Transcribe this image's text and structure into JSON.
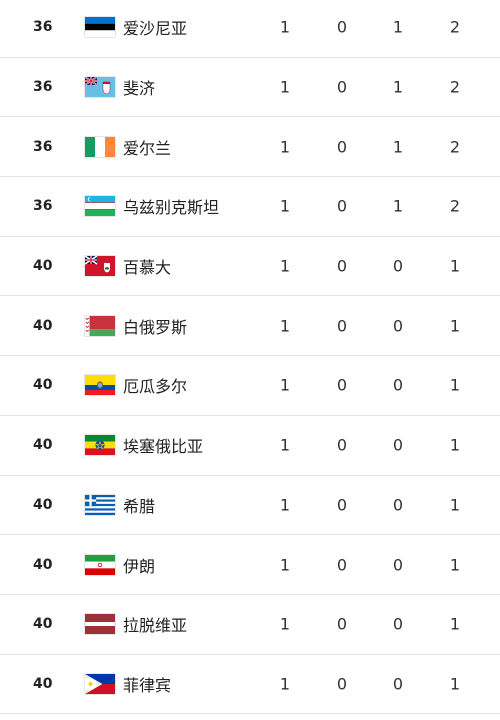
{
  "medal_table": {
    "rows": [
      {
        "rank": "36",
        "country": "爱沙尼亚",
        "flag": "estonia-flag",
        "gold": "1",
        "silver": "0",
        "bronze": "1",
        "total": "2"
      },
      {
        "rank": "36",
        "country": "斐济",
        "flag": "fiji-flag",
        "gold": "1",
        "silver": "0",
        "bronze": "1",
        "total": "2"
      },
      {
        "rank": "36",
        "country": "爱尔兰",
        "flag": "ireland-flag",
        "gold": "1",
        "silver": "0",
        "bronze": "1",
        "total": "2"
      },
      {
        "rank": "36",
        "country": "乌兹别克斯坦",
        "flag": "uzbekistan-flag",
        "gold": "1",
        "silver": "0",
        "bronze": "1",
        "total": "2"
      },
      {
        "rank": "40",
        "country": "百慕大",
        "flag": "bermuda-flag",
        "gold": "1",
        "silver": "0",
        "bronze": "0",
        "total": "1"
      },
      {
        "rank": "40",
        "country": "白俄罗斯",
        "flag": "belarus-flag",
        "gold": "1",
        "silver": "0",
        "bronze": "0",
        "total": "1"
      },
      {
        "rank": "40",
        "country": "厄瓜多尔",
        "flag": "ecuador-flag",
        "gold": "1",
        "silver": "0",
        "bronze": "0",
        "total": "1"
      },
      {
        "rank": "40",
        "country": "埃塞俄比亚",
        "flag": "ethiopia-flag",
        "gold": "1",
        "silver": "0",
        "bronze": "0",
        "total": "1"
      },
      {
        "rank": "40",
        "country": "希腊",
        "flag": "greece-flag",
        "gold": "1",
        "silver": "0",
        "bronze": "0",
        "total": "1"
      },
      {
        "rank": "40",
        "country": "伊朗",
        "flag": "iran-flag",
        "gold": "1",
        "silver": "0",
        "bronze": "0",
        "total": "1"
      },
      {
        "rank": "40",
        "country": "拉脱维亚",
        "flag": "latvia-flag",
        "gold": "1",
        "silver": "0",
        "bronze": "0",
        "total": "1"
      },
      {
        "rank": "40",
        "country": "菲律宾",
        "flag": "philippines-flag",
        "gold": "1",
        "silver": "0",
        "bronze": "0",
        "total": "1"
      }
    ]
  }
}
